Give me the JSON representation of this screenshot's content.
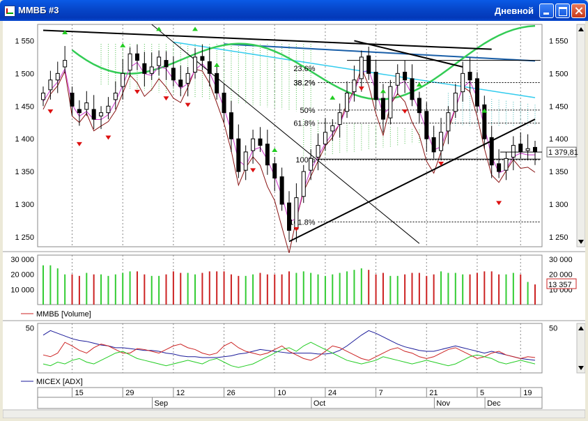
{
  "window": {
    "title": "ММВБ #3",
    "period": "Дневной"
  },
  "colors": {
    "up_candle": "#ffffff",
    "down_candle": "#000000",
    "volume_up": "#33cc33",
    "volume_down": "#cc2222",
    "adx_line": "#1a1a99",
    "di_plus": "#22cc22",
    "di_minus": "#cc2222"
  },
  "chart_data": [
    {
      "type": "candlestick",
      "ylim": [
        1235,
        1575
      ],
      "ytick_labels": [
        "1 550",
        "1 500",
        "1 450",
        "1 400",
        "1 350",
        "1 300",
        "1 250"
      ],
      "ytick_values": [
        1550,
        1500,
        1450,
        1400,
        1350,
        1300,
        1250
      ],
      "last_price_label": "1 379,81",
      "last_price": 1379.81,
      "fib_levels": [
        {
          "label": "38.2%",
          "value": 1486
        },
        {
          "label": "50%",
          "value": 1444
        },
        {
          "label": "61.8%",
          "value": 1424
        },
        {
          "label": "100%",
          "value": 1368
        },
        {
          "label": "161.8%",
          "value": 1273
        }
      ],
      "fib_partial_labels": [
        "23.6%",
        "38.2%"
      ],
      "close": [
        1470,
        1490,
        1500,
        1520,
        1450,
        1440,
        1455,
        1430,
        1440,
        1450,
        1470,
        1500,
        1530,
        1520,
        1500,
        1510,
        1525,
        1510,
        1490,
        1480,
        1500,
        1525,
        1520,
        1500,
        1470,
        1440,
        1400,
        1350,
        1380,
        1400,
        1390,
        1360,
        1340,
        1300,
        1260,
        1310,
        1350,
        1370,
        1390,
        1410,
        1420,
        1440,
        1470,
        1490,
        1525,
        1500,
        1460,
        1430,
        1480,
        1500,
        1490,
        1460,
        1440,
        1400,
        1380,
        1410,
        1440,
        1470,
        1500,
        1490,
        1450,
        1400,
        1360,
        1350,
        1370,
        1390,
        1380,
        1385,
        1380
      ],
      "open": [
        1460,
        1475,
        1490,
        1510,
        1470,
        1445,
        1445,
        1445,
        1435,
        1440,
        1460,
        1480,
        1505,
        1530,
        1515,
        1500,
        1512,
        1520,
        1508,
        1490,
        1485,
        1502,
        1526,
        1518,
        1500,
        1470,
        1440,
        1400,
        1352,
        1382,
        1400,
        1392,
        1362,
        1342,
        1302,
        1262,
        1312,
        1352,
        1372,
        1392,
        1412,
        1422,
        1442,
        1472,
        1492,
        1527,
        1502,
        1462,
        1432,
        1482,
        1502,
        1492,
        1462,
        1442,
        1402,
        1382,
        1412,
        1442,
        1472,
        1502,
        1492,
        1452,
        1402,
        1362,
        1352,
        1372,
        1392,
        1382,
        1387
      ],
      "volume_labels": [
        "30 000",
        "20 000",
        "10 000"
      ],
      "volume_ticks": [
        30000,
        20000,
        10000
      ],
      "volume_last_label": "13 357",
      "volume_legend": "ММВБ [Volume]",
      "volume": [
        26000,
        26000,
        24000,
        20000,
        20000,
        19000,
        21000,
        20000,
        20000,
        19000,
        20000,
        21000,
        22000,
        22000,
        20000,
        19000,
        19000,
        20000,
        22000,
        21000,
        21000,
        20000,
        21000,
        22000,
        22000,
        22000,
        20000,
        19000,
        19000,
        20000,
        21000,
        20000,
        20000,
        20000,
        22000,
        21000,
        22000,
        21000,
        20000,
        19000,
        20000,
        21000,
        22000,
        23000,
        24000,
        23000,
        20000,
        21000,
        19000,
        19000,
        20000,
        21000,
        21000,
        19000,
        20000,
        22000,
        21000,
        21000,
        20000,
        20000,
        21000,
        22000,
        22000,
        20000,
        20000,
        21000,
        20000,
        15000,
        13357
      ]
    },
    {
      "type": "line",
      "legend": "MICEX [ADX]",
      "ytick_labels": [
        "50"
      ],
      "ytick_values": [
        50
      ],
      "ylim": [
        0,
        55
      ],
      "series": [
        {
          "values": [
            42,
            47,
            44,
            41,
            38,
            36,
            35,
            33,
            31,
            30,
            28,
            28,
            27,
            26,
            25,
            25,
            24,
            22,
            21,
            19,
            18,
            18,
            17,
            17,
            17,
            18,
            19,
            21,
            22,
            24,
            26,
            25,
            24,
            23,
            22,
            22,
            22,
            22,
            21,
            21,
            22,
            25,
            30,
            36,
            42,
            47,
            44,
            40,
            36,
            32,
            29,
            27,
            25,
            24,
            24,
            26,
            28,
            30,
            28,
            26,
            24,
            22,
            24,
            22,
            20,
            18,
            16,
            15,
            14
          ]
        },
        {
          "values": [
            20,
            18,
            22,
            34,
            30,
            25,
            22,
            28,
            32,
            30,
            26,
            22,
            22,
            27,
            26,
            24,
            22,
            26,
            30,
            32,
            28,
            26,
            22,
            20,
            22,
            30,
            34,
            28,
            24,
            22,
            20,
            22,
            26,
            30,
            24,
            20,
            16,
            14,
            18,
            24,
            30,
            28,
            24,
            20,
            16,
            14,
            18,
            22,
            26,
            28,
            24,
            22,
            18,
            16,
            18,
            22,
            26,
            28,
            24,
            20,
            16,
            18,
            22,
            24,
            20,
            18,
            16,
            18,
            17
          ]
        },
        {
          "values": [
            10,
            8,
            12,
            10,
            14,
            16,
            12,
            10,
            14,
            18,
            22,
            24,
            20,
            16,
            14,
            12,
            10,
            8,
            10,
            12,
            14,
            12,
            10,
            14,
            16,
            12,
            8,
            6,
            8,
            10,
            14,
            18,
            22,
            26,
            28,
            24,
            30,
            34,
            30,
            26,
            22,
            18,
            14,
            12,
            10,
            12,
            14,
            18,
            16,
            14,
            12,
            10,
            12,
            14,
            12,
            10,
            8,
            10,
            14,
            18,
            20,
            18,
            16,
            12,
            10,
            12,
            14,
            12,
            10
          ]
        }
      ]
    }
  ],
  "x_axis": {
    "day_labels": [
      "15",
      "29",
      "12",
      "26",
      "10",
      "24",
      "7",
      "21",
      "5",
      "19"
    ],
    "month_labels": [
      "Sep",
      "Oct",
      "Nov",
      "Dec"
    ]
  }
}
